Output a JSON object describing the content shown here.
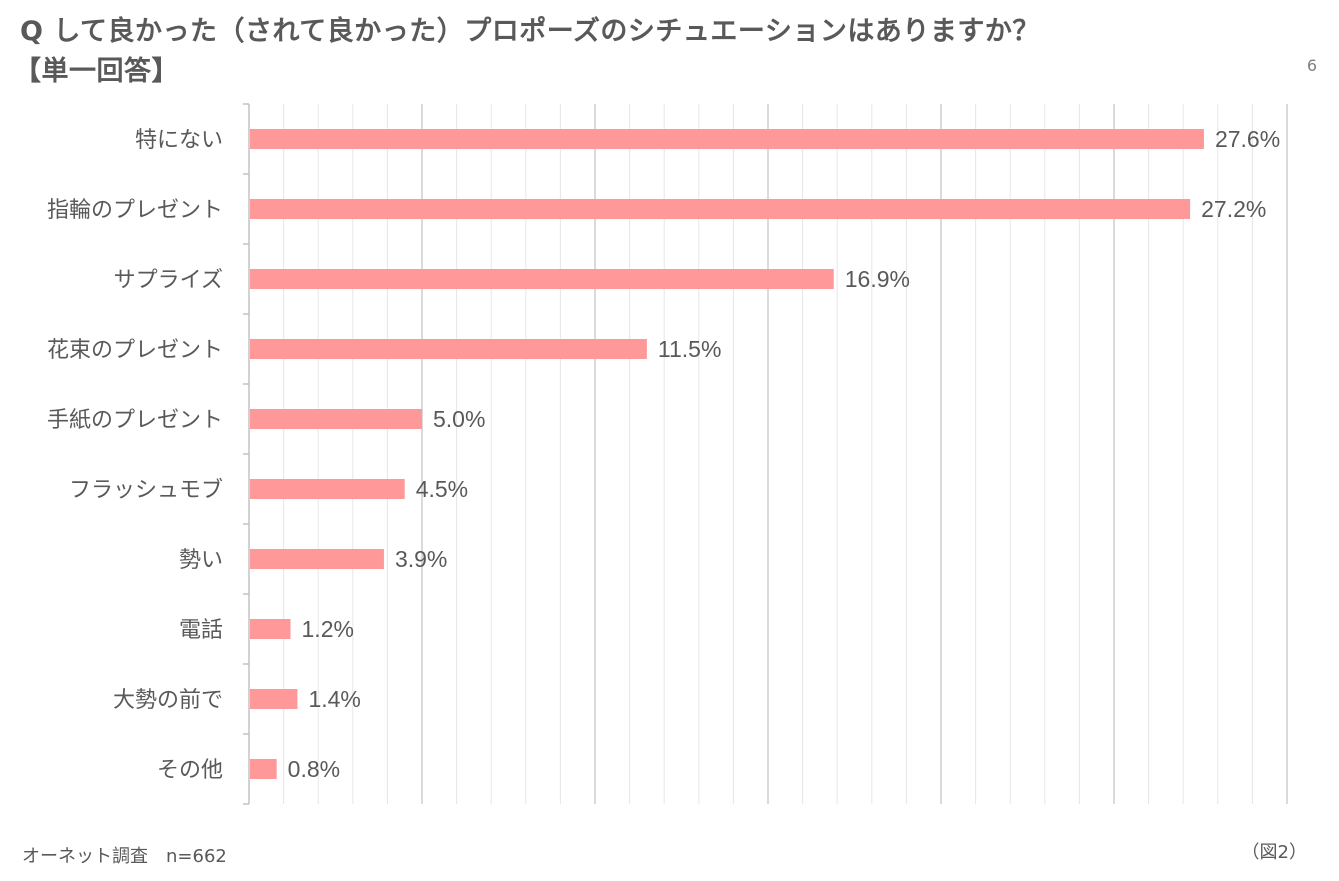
{
  "title": {
    "line1": "Q して良かった（されて良かった）プロポーズのシチュエーションはありますか？",
    "line2": "【単一回答】"
  },
  "corner_mark": "6",
  "footer": {
    "source": "オーネット調査　n=662",
    "figure_label": "（図2）"
  },
  "colors": {
    "bar": "#ff9999",
    "grid_major": "#d0d0d0",
    "grid_minor": "#e6e6e6",
    "axis": "#bfbfbf",
    "text": "#595959"
  },
  "chart_data": {
    "type": "bar",
    "orientation": "horizontal",
    "categories": [
      "特にない",
      "指輪のプレゼント",
      "サプライズ",
      "花束のプレゼント",
      "手紙のプレゼント",
      "フラッシュモブ",
      "勢い",
      "電話",
      "大勢の前で",
      "その他"
    ],
    "values": [
      27.6,
      27.2,
      16.9,
      11.5,
      5.0,
      4.5,
      3.9,
      1.2,
      1.4,
      0.8
    ],
    "value_labels": [
      "27.6%",
      "27.2%",
      "16.9%",
      "11.5%",
      "5.0%",
      "4.5%",
      "3.9%",
      "1.2%",
      "1.4%",
      "0.8%"
    ],
    "xlim": [
      0,
      30
    ],
    "grid": true,
    "legend": "none"
  }
}
